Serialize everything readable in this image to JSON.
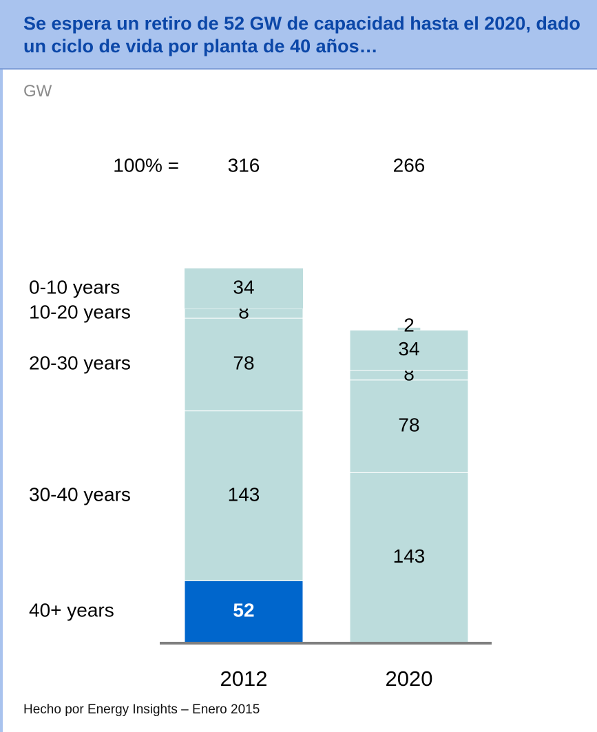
{
  "header": {
    "title": "Se espera un retiro de 52 GW de capacidad hasta el 2020, dado un ciclo de vida por planta de 40 años…",
    "unit": "GW"
  },
  "footnote": "Hecho por Energy Insights – Enero 2015",
  "colors": {
    "header_bg": "#a9c3ee",
    "title": "#0b47a8",
    "segment": "#bcdcdc",
    "highlight": "#0066cc",
    "axis": "#7f7f7f"
  },
  "chart_data": {
    "type": "bar",
    "stacked": true,
    "total_label": "100% =",
    "categories": [
      "2012",
      "2020"
    ],
    "totals": [
      316,
      266
    ],
    "series": [
      {
        "name": "40+ years",
        "values": [
          52,
          null
        ],
        "highlight": [
          true,
          false
        ]
      },
      {
        "name": "30-40 years",
        "values": [
          143,
          143
        ]
      },
      {
        "name": "20-30 years",
        "values": [
          78,
          78
        ]
      },
      {
        "name": "10-20 years",
        "values": [
          8,
          8
        ]
      },
      {
        "name": "0-10 years",
        "values": [
          34,
          34
        ]
      },
      {
        "name": "",
        "values": [
          null,
          2
        ]
      }
    ]
  }
}
